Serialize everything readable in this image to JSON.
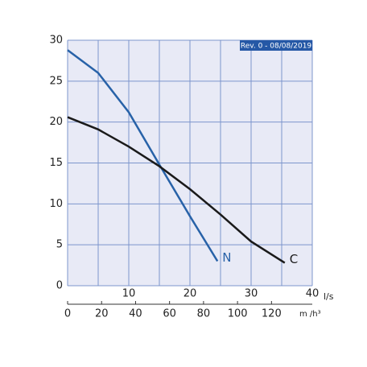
{
  "chart_data": {
    "type": "line",
    "annotation": "Rev. 0 - 08/08/2019",
    "xlabel": "l/s",
    "x2label": "m /h³",
    "xlim": [
      0,
      40
    ],
    "xticks": [
      0,
      5,
      10,
      15,
      20,
      25,
      30,
      35,
      40
    ],
    "xticklabels": [
      {
        "value": 10,
        "label": "10"
      },
      {
        "value": 20,
        "label": "20"
      },
      {
        "value": 30,
        "label": "30"
      },
      {
        "value": 40,
        "label": "40"
      }
    ],
    "x2lim": [
      0,
      144
    ],
    "x2ticks": [
      0,
      20,
      40,
      60,
      80,
      100,
      120
    ],
    "ylim": [
      0,
      30
    ],
    "yticks": [
      0,
      5,
      10,
      15,
      20,
      25,
      30
    ],
    "grid": true,
    "background": "#e8eaf6",
    "grid_color": "#7c95cc",
    "series": [
      {
        "name": "N",
        "color": "#2862a8",
        "x": [
          0,
          5,
          10,
          15,
          20,
          24.5
        ],
        "values": [
          28.8,
          26,
          21.2,
          14.8,
          8.5,
          3
        ]
      },
      {
        "name": "C",
        "color": "#1a1a1a",
        "x": [
          0,
          5,
          10,
          15,
          20,
          25,
          30,
          35.5
        ],
        "values": [
          20.6,
          19.1,
          17,
          14.6,
          11.8,
          8.7,
          5.4,
          2.8
        ]
      }
    ]
  }
}
